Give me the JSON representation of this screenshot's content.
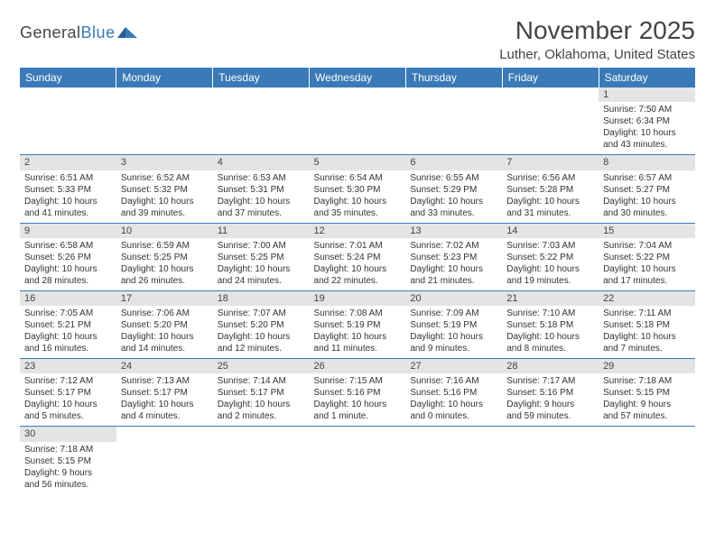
{
  "logo": {
    "part1": "General",
    "part2": "Blue"
  },
  "title": "November 2025",
  "location": "Luther, Oklahoma, United States",
  "colors": {
    "header_bg": "#3b7ab8",
    "header_text": "#ffffff",
    "daynum_bg": "#e4e4e4",
    "border": "#3b7ab8",
    "text": "#333333",
    "page_bg": "#ffffff"
  },
  "weekdays": [
    "Sunday",
    "Monday",
    "Tuesday",
    "Wednesday",
    "Thursday",
    "Friday",
    "Saturday"
  ],
  "weeks": [
    [
      null,
      null,
      null,
      null,
      null,
      null,
      {
        "n": "1",
        "sunrise": "Sunrise: 7:50 AM",
        "sunset": "Sunset: 6:34 PM",
        "dl1": "Daylight: 10 hours",
        "dl2": "and 43 minutes."
      }
    ],
    [
      {
        "n": "2",
        "sunrise": "Sunrise: 6:51 AM",
        "sunset": "Sunset: 5:33 PM",
        "dl1": "Daylight: 10 hours",
        "dl2": "and 41 minutes."
      },
      {
        "n": "3",
        "sunrise": "Sunrise: 6:52 AM",
        "sunset": "Sunset: 5:32 PM",
        "dl1": "Daylight: 10 hours",
        "dl2": "and 39 minutes."
      },
      {
        "n": "4",
        "sunrise": "Sunrise: 6:53 AM",
        "sunset": "Sunset: 5:31 PM",
        "dl1": "Daylight: 10 hours",
        "dl2": "and 37 minutes."
      },
      {
        "n": "5",
        "sunrise": "Sunrise: 6:54 AM",
        "sunset": "Sunset: 5:30 PM",
        "dl1": "Daylight: 10 hours",
        "dl2": "and 35 minutes."
      },
      {
        "n": "6",
        "sunrise": "Sunrise: 6:55 AM",
        "sunset": "Sunset: 5:29 PM",
        "dl1": "Daylight: 10 hours",
        "dl2": "and 33 minutes."
      },
      {
        "n": "7",
        "sunrise": "Sunrise: 6:56 AM",
        "sunset": "Sunset: 5:28 PM",
        "dl1": "Daylight: 10 hours",
        "dl2": "and 31 minutes."
      },
      {
        "n": "8",
        "sunrise": "Sunrise: 6:57 AM",
        "sunset": "Sunset: 5:27 PM",
        "dl1": "Daylight: 10 hours",
        "dl2": "and 30 minutes."
      }
    ],
    [
      {
        "n": "9",
        "sunrise": "Sunrise: 6:58 AM",
        "sunset": "Sunset: 5:26 PM",
        "dl1": "Daylight: 10 hours",
        "dl2": "and 28 minutes."
      },
      {
        "n": "10",
        "sunrise": "Sunrise: 6:59 AM",
        "sunset": "Sunset: 5:25 PM",
        "dl1": "Daylight: 10 hours",
        "dl2": "and 26 minutes."
      },
      {
        "n": "11",
        "sunrise": "Sunrise: 7:00 AM",
        "sunset": "Sunset: 5:25 PM",
        "dl1": "Daylight: 10 hours",
        "dl2": "and 24 minutes."
      },
      {
        "n": "12",
        "sunrise": "Sunrise: 7:01 AM",
        "sunset": "Sunset: 5:24 PM",
        "dl1": "Daylight: 10 hours",
        "dl2": "and 22 minutes."
      },
      {
        "n": "13",
        "sunrise": "Sunrise: 7:02 AM",
        "sunset": "Sunset: 5:23 PM",
        "dl1": "Daylight: 10 hours",
        "dl2": "and 21 minutes."
      },
      {
        "n": "14",
        "sunrise": "Sunrise: 7:03 AM",
        "sunset": "Sunset: 5:22 PM",
        "dl1": "Daylight: 10 hours",
        "dl2": "and 19 minutes."
      },
      {
        "n": "15",
        "sunrise": "Sunrise: 7:04 AM",
        "sunset": "Sunset: 5:22 PM",
        "dl1": "Daylight: 10 hours",
        "dl2": "and 17 minutes."
      }
    ],
    [
      {
        "n": "16",
        "sunrise": "Sunrise: 7:05 AM",
        "sunset": "Sunset: 5:21 PM",
        "dl1": "Daylight: 10 hours",
        "dl2": "and 16 minutes."
      },
      {
        "n": "17",
        "sunrise": "Sunrise: 7:06 AM",
        "sunset": "Sunset: 5:20 PM",
        "dl1": "Daylight: 10 hours",
        "dl2": "and 14 minutes."
      },
      {
        "n": "18",
        "sunrise": "Sunrise: 7:07 AM",
        "sunset": "Sunset: 5:20 PM",
        "dl1": "Daylight: 10 hours",
        "dl2": "and 12 minutes."
      },
      {
        "n": "19",
        "sunrise": "Sunrise: 7:08 AM",
        "sunset": "Sunset: 5:19 PM",
        "dl1": "Daylight: 10 hours",
        "dl2": "and 11 minutes."
      },
      {
        "n": "20",
        "sunrise": "Sunrise: 7:09 AM",
        "sunset": "Sunset: 5:19 PM",
        "dl1": "Daylight: 10 hours",
        "dl2": "and 9 minutes."
      },
      {
        "n": "21",
        "sunrise": "Sunrise: 7:10 AM",
        "sunset": "Sunset: 5:18 PM",
        "dl1": "Daylight: 10 hours",
        "dl2": "and 8 minutes."
      },
      {
        "n": "22",
        "sunrise": "Sunrise: 7:11 AM",
        "sunset": "Sunset: 5:18 PM",
        "dl1": "Daylight: 10 hours",
        "dl2": "and 7 minutes."
      }
    ],
    [
      {
        "n": "23",
        "sunrise": "Sunrise: 7:12 AM",
        "sunset": "Sunset: 5:17 PM",
        "dl1": "Daylight: 10 hours",
        "dl2": "and 5 minutes."
      },
      {
        "n": "24",
        "sunrise": "Sunrise: 7:13 AM",
        "sunset": "Sunset: 5:17 PM",
        "dl1": "Daylight: 10 hours",
        "dl2": "and 4 minutes."
      },
      {
        "n": "25",
        "sunrise": "Sunrise: 7:14 AM",
        "sunset": "Sunset: 5:17 PM",
        "dl1": "Daylight: 10 hours",
        "dl2": "and 2 minutes."
      },
      {
        "n": "26",
        "sunrise": "Sunrise: 7:15 AM",
        "sunset": "Sunset: 5:16 PM",
        "dl1": "Daylight: 10 hours",
        "dl2": "and 1 minute."
      },
      {
        "n": "27",
        "sunrise": "Sunrise: 7:16 AM",
        "sunset": "Sunset: 5:16 PM",
        "dl1": "Daylight: 10 hours",
        "dl2": "and 0 minutes."
      },
      {
        "n": "28",
        "sunrise": "Sunrise: 7:17 AM",
        "sunset": "Sunset: 5:16 PM",
        "dl1": "Daylight: 9 hours",
        "dl2": "and 59 minutes."
      },
      {
        "n": "29",
        "sunrise": "Sunrise: 7:18 AM",
        "sunset": "Sunset: 5:15 PM",
        "dl1": "Daylight: 9 hours",
        "dl2": "and 57 minutes."
      }
    ],
    [
      {
        "n": "30",
        "sunrise": "Sunrise: 7:18 AM",
        "sunset": "Sunset: 5:15 PM",
        "dl1": "Daylight: 9 hours",
        "dl2": "and 56 minutes."
      },
      null,
      null,
      null,
      null,
      null,
      null
    ]
  ]
}
